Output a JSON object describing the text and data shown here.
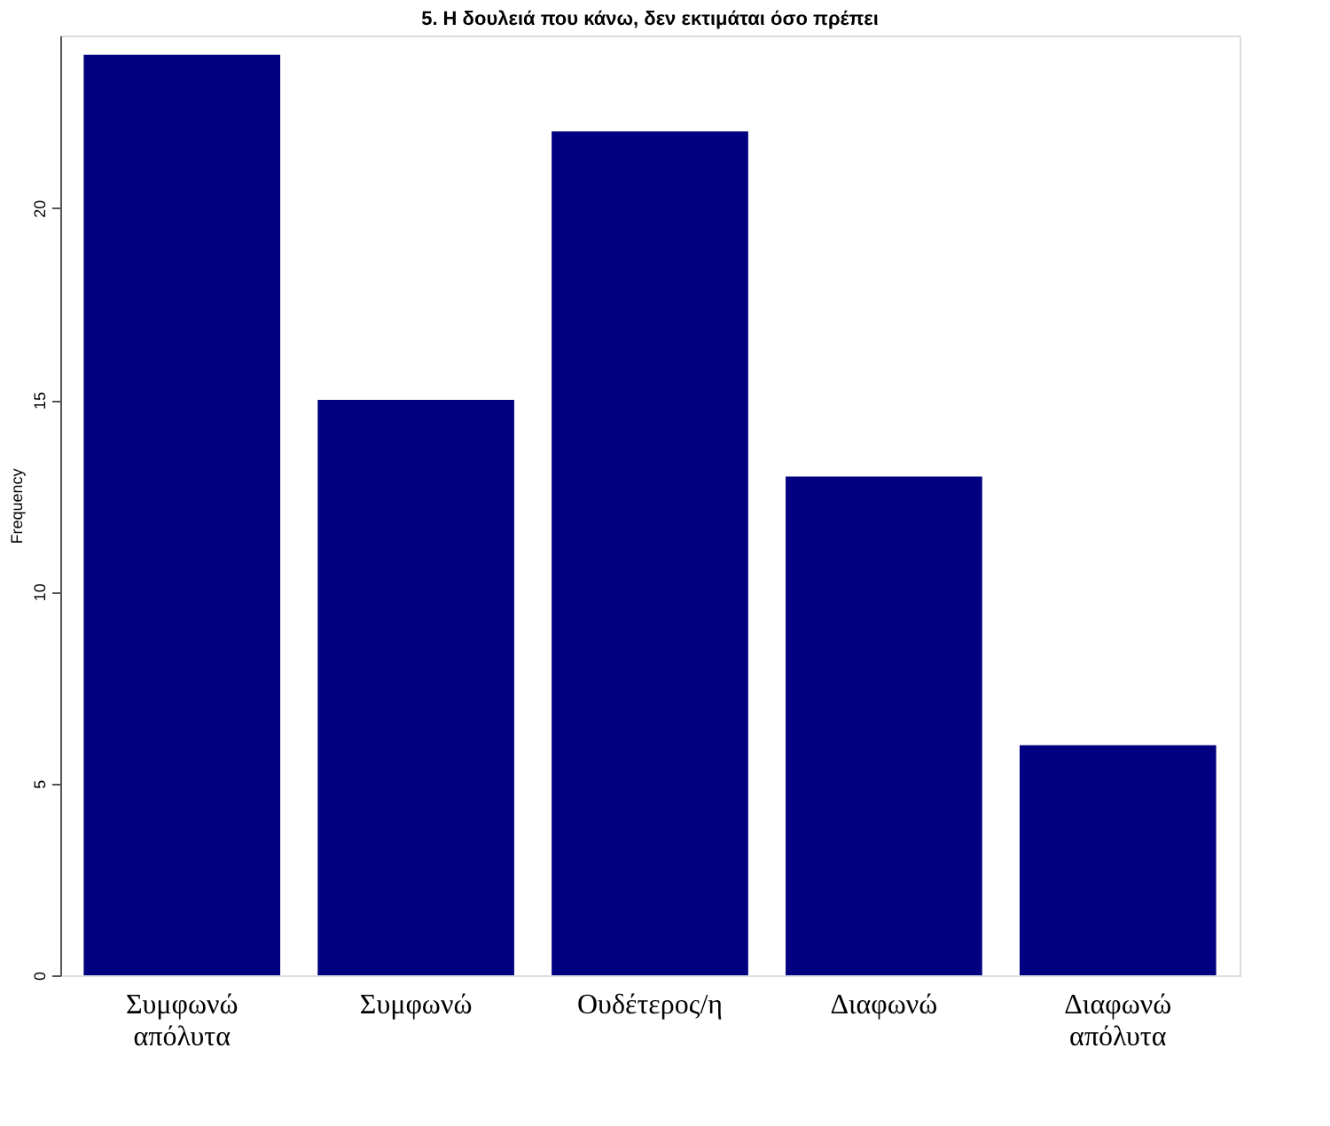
{
  "chart_data": {
    "type": "bar",
    "title": "5. Η δουλειά που κάνω, δεν εκτιμάται όσο πρέπει",
    "ylabel": "Frequency",
    "categories": [
      "Συμφωνώ απόλυτα",
      "Συμφωνώ",
      "Ουδέτερος/η",
      "Διαφωνώ",
      "Διαφωνώ απόλυτα"
    ],
    "values": [
      24,
      15,
      22,
      13,
      6
    ],
    "color": "#000080",
    "ylim": [
      0,
      24.5
    ],
    "yticks": [
      0,
      5,
      10,
      15,
      20
    ],
    "grid": false
  }
}
